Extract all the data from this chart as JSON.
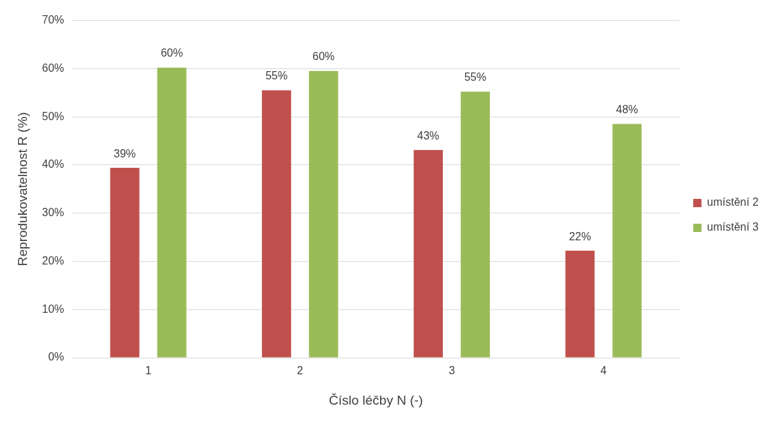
{
  "chart_data": {
    "type": "bar",
    "xlabel": "Číslo léčby N (-)",
    "ylabel": "Reprodukovatelnost R (%)",
    "categories": [
      "1",
      "2",
      "3",
      "4"
    ],
    "series": [
      {
        "name": "umístění 2",
        "color": "#c0504d",
        "values": [
          39.4,
          55.5,
          43.1,
          22.2
        ],
        "value_labels": [
          "39%",
          "55%",
          "43%",
          "22%"
        ]
      },
      {
        "name": "umístění 3",
        "color": "#9bbb59",
        "values": [
          60.2,
          59.5,
          55.2,
          48.5
        ],
        "value_labels": [
          "60%",
          "60%",
          "55%",
          "48%"
        ]
      }
    ],
    "ylim": [
      0,
      70
    ],
    "yticks": [
      {
        "value": 0,
        "label": "0%"
      },
      {
        "value": 10,
        "label": "10%"
      },
      {
        "value": 20,
        "label": "20%"
      },
      {
        "value": 30,
        "label": "30%"
      },
      {
        "value": 40,
        "label": "40%"
      },
      {
        "value": 50,
        "label": "50%"
      },
      {
        "value": 60,
        "label": "60%"
      },
      {
        "value": 70,
        "label": "70%"
      }
    ],
    "grid": "y",
    "legend": "right"
  }
}
